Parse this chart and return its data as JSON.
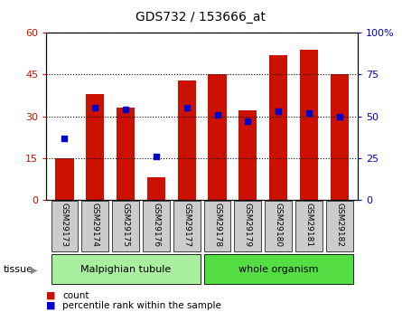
{
  "title": "GDS732 / 153666_at",
  "samples": [
    "GSM29173",
    "GSM29174",
    "GSM29175",
    "GSM29176",
    "GSM29177",
    "GSM29178",
    "GSM29179",
    "GSM29180",
    "GSM29181",
    "GSM29182"
  ],
  "counts": [
    15,
    38,
    33,
    8,
    43,
    45,
    32,
    52,
    54,
    45
  ],
  "percentile_ranks_right": [
    37,
    55,
    54,
    26,
    55,
    51,
    47,
    53,
    52,
    50
  ],
  "ylim_left": [
    0,
    60
  ],
  "ylim_right": [
    0,
    100
  ],
  "yticks_left": [
    0,
    15,
    30,
    45,
    60
  ],
  "yticks_right": [
    0,
    25,
    50,
    75,
    100
  ],
  "ytick_labels_right": [
    "0",
    "25",
    "50",
    "75",
    "100%"
  ],
  "bar_color": "#CC1100",
  "dot_color": "#0000CC",
  "grid_color": "#000000",
  "tissue_groups": [
    {
      "label": "Malpighian tubule",
      "start": 0,
      "end": 5,
      "color": "#AAEEA0"
    },
    {
      "label": "whole organism",
      "start": 5,
      "end": 10,
      "color": "#55DD44"
    }
  ],
  "legend_items": [
    {
      "label": "count",
      "color": "#CC1100"
    },
    {
      "label": "percentile rank within the sample",
      "color": "#0000CC"
    }
  ],
  "xlabel_tissue": "tissue",
  "bar_width": 0.6
}
